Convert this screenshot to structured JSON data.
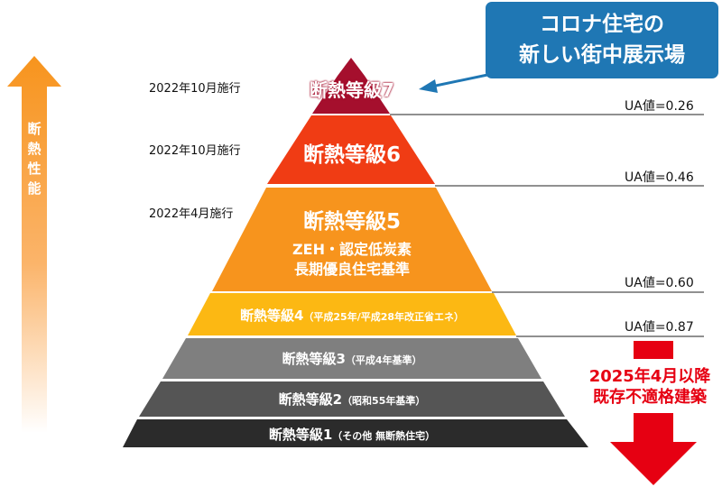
{
  "callout": {
    "line1": "コロナ住宅の",
    "line2": "新しい街中展示場"
  },
  "performance_axis": {
    "label": "断熱性能"
  },
  "dates": {
    "level7": "2022年10月施行",
    "level6": "2022年10月施行",
    "level5": "2022年4月施行"
  },
  "ua_values": [
    {
      "label": "UA値=0.26"
    },
    {
      "label": "UA値=0.46"
    },
    {
      "label": "UA値=0.60"
    },
    {
      "label": "UA値=0.87"
    }
  ],
  "levels": {
    "level7": {
      "title": "断熱等級7",
      "color": "#a50f2d"
    },
    "level6": {
      "title": "断熱等級6",
      "color": "#f03c14"
    },
    "level5": {
      "title": "断熱等級5",
      "line2": "ZEH・認定低炭素",
      "line3": "長期優良住宅基準",
      "color": "#f7941d"
    },
    "level4": {
      "title": "断熱等級4",
      "note": "（平成25年/平成28年改正省エネ）",
      "color": "#fcb813"
    },
    "level3": {
      "title": "断熱等級3",
      "note": "（平成4年基準）",
      "color": "#7f7f7f"
    },
    "level2": {
      "title": "断熱等級2",
      "note": "（昭和55年基準）",
      "color": "#555555"
    },
    "level1": {
      "title": "断熱等級1",
      "note": "（その他 無断熱住宅）",
      "color": "#2b2b2b"
    }
  },
  "warning": {
    "line1": "2025年4月以降",
    "line2": "既存不適格建築"
  }
}
